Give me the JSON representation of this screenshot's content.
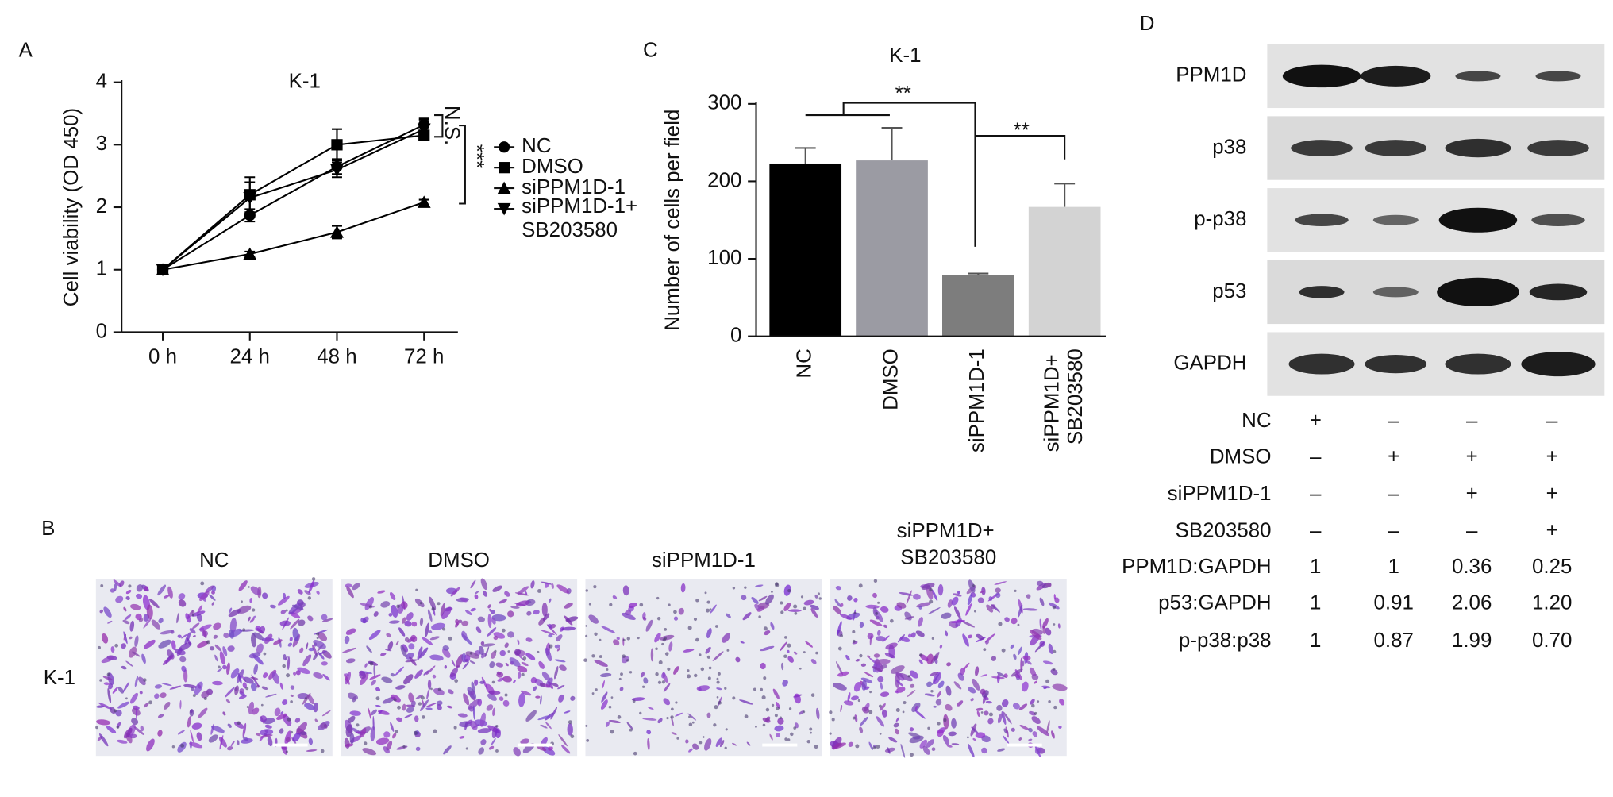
{
  "chart_data": [
    {
      "type": "line",
      "title": "K-1",
      "ylabel": "Cell viability (OD 450)",
      "categories": [
        "0 h",
        "24 h",
        "48 h",
        "72 h"
      ],
      "ylim": [
        0,
        4
      ],
      "yticks": [
        0,
        1,
        2,
        3,
        4
      ],
      "series": [
        {
          "name": "NC",
          "color": "#000000",
          "marker": "circle",
          "values": [
            1,
            1.87,
            2.65,
            3.32
          ],
          "errors": [
            0.03,
            0.1,
            0.12,
            0.1
          ]
        },
        {
          "name": "DMSO",
          "color": "#000000",
          "marker": "square",
          "values": [
            1,
            2.2,
            3.0,
            3.15
          ],
          "errors": [
            0.03,
            0.28,
            0.25,
            0.08
          ]
        },
        {
          "name": "siPPM1D-1",
          "color": "#000000",
          "marker": "triangle-up",
          "values": [
            1,
            1.25,
            1.6,
            2.08
          ],
          "errors": [
            0.02,
            0.04,
            0.1,
            0.04
          ]
        },
        {
          "name": "siPPM1D-1+ SB203580",
          "color": "#000000",
          "marker": "triangle-down",
          "values": [
            1,
            2.15,
            2.6,
            3.25
          ],
          "errors": [
            0.03,
            0.25,
            0.12,
            0.15
          ]
        }
      ],
      "annotations": [
        "N.S.",
        "***"
      ]
    },
    {
      "type": "bar",
      "title": "K-1",
      "ylabel": "Number of cells per field",
      "categories": [
        "NC",
        "DMSO",
        "siPPM1D-1",
        "siPPM1D+ SB203580"
      ],
      "values": [
        223,
        227,
        79,
        167
      ],
      "errors": [
        20,
        42,
        2,
        30
      ],
      "colors": [
        "#000000",
        "#9b9ba3",
        "#7d7d7d",
        "#d3d3d3"
      ],
      "ylim": [
        0,
        300
      ],
      "yticks": [
        0,
        100,
        200,
        300
      ],
      "annotations": [
        "**",
        "**"
      ]
    }
  ],
  "panel_labels": [
    "A",
    "B",
    "C",
    "D"
  ],
  "panel_b": {
    "row_label": "K-1",
    "columns": [
      "NC",
      "DMSO",
      "siPPM1D-1",
      "siPPM1D+ SB203580"
    ]
  },
  "panel_d": {
    "blot_labels": [
      "PPM1D",
      "p38",
      "p-p38",
      "p53",
      "GAPDH"
    ],
    "treatments": [
      {
        "label": "NC",
        "marks": [
          "+",
          "–",
          "–",
          "–"
        ]
      },
      {
        "label": "DMSO",
        "marks": [
          "–",
          "+",
          "+",
          "+"
        ]
      },
      {
        "label": "siPPM1D-1",
        "marks": [
          "–",
          "–",
          "+",
          "+"
        ]
      },
      {
        "label": "SB203580",
        "marks": [
          "–",
          "–",
          "–",
          "+"
        ]
      }
    ],
    "ratios": [
      {
        "label": "PPM1D:GAPDH",
        "values": [
          "1",
          "1",
          "0.36",
          "0.25"
        ]
      },
      {
        "label": "p53:GAPDH",
        "values": [
          "1",
          "0.91",
          "2.06",
          "1.20"
        ]
      },
      {
        "label": "p-p38:p38",
        "values": [
          "1",
          "0.87",
          "1.99",
          "0.70"
        ]
      }
    ]
  }
}
